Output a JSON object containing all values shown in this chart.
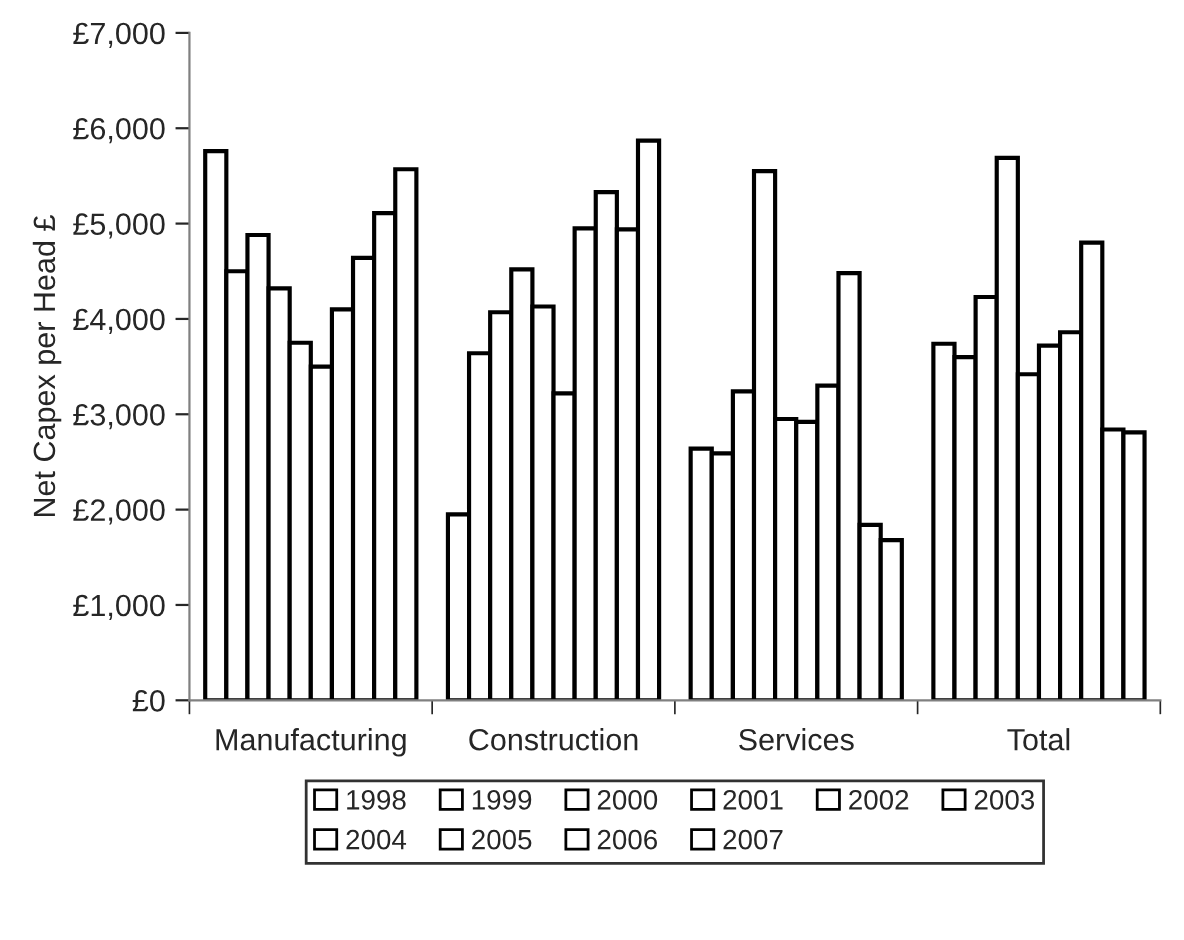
{
  "chart_data": {
    "type": "bar",
    "ylabel": "Net Capex per Head £",
    "categories": [
      "Manufacturing",
      "Construction",
      "Services",
      "Total"
    ],
    "ylim": [
      0,
      7000
    ],
    "yticks": [
      {
        "value": 0,
        "label": "£0"
      },
      {
        "value": 1000,
        "label": "£1,000"
      },
      {
        "value": 2000,
        "label": "£2,000"
      },
      {
        "value": 3000,
        "label": "£3,000"
      },
      {
        "value": 4000,
        "label": "£4,000"
      },
      {
        "value": 5000,
        "label": "£5,000"
      },
      {
        "value": 6000,
        "label": "£6,000"
      },
      {
        "value": 7000,
        "label": "£7,000"
      }
    ],
    "grid": false,
    "legend": "bottom",
    "series": [
      {
        "name": "1998",
        "color": "#ffffff",
        "values": [
          5760,
          1950,
          2640,
          3740
        ]
      },
      {
        "name": "1999",
        "color": "#ffffff",
        "values": [
          4500,
          3640,
          2590,
          3600
        ]
      },
      {
        "name": "2000",
        "color": "#ffffff",
        "values": [
          4880,
          4070,
          3240,
          4230
        ]
      },
      {
        "name": "2001",
        "color": "#ffffff",
        "values": [
          4320,
          4520,
          5550,
          5690
        ]
      },
      {
        "name": "2002",
        "color": "#ffffff",
        "values": [
          3750,
          4130,
          2950,
          3420
        ]
      },
      {
        "name": "2003",
        "color": "#ffffff",
        "values": [
          3500,
          3220,
          2920,
          3720
        ]
      },
      {
        "name": "2004",
        "color": "#ffffff",
        "values": [
          4100,
          4950,
          3300,
          3860
        ]
      },
      {
        "name": "2005",
        "color": "#ffffff",
        "values": [
          4640,
          5330,
          4480,
          4800
        ]
      },
      {
        "name": "2006",
        "color": "#ffffff",
        "values": [
          5110,
          4940,
          1840,
          2840
        ]
      },
      {
        "name": "2007",
        "color": "#ffffff",
        "values": [
          5570,
          5870,
          1680,
          2810
        ]
      }
    ]
  }
}
